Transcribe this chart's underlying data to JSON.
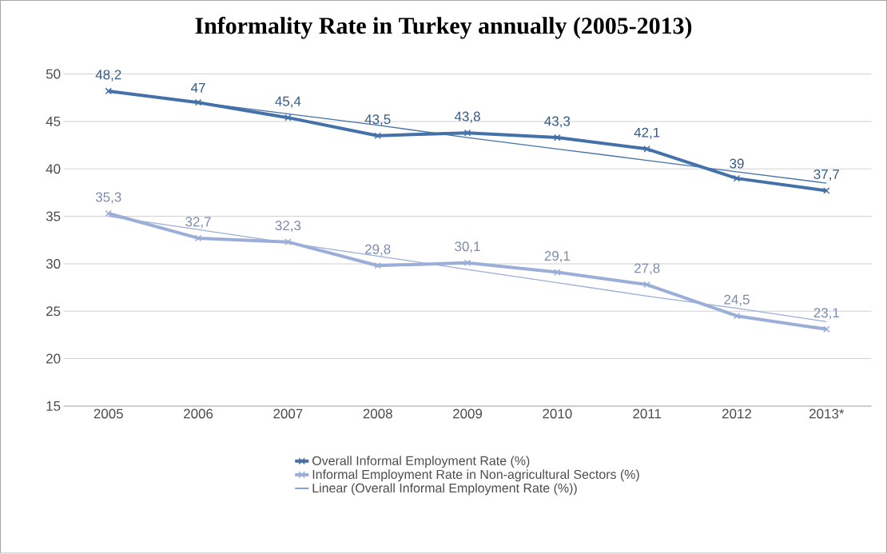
{
  "chart_data": {
    "type": "line",
    "title": "Informality Rate in Turkey annually (2005-2013)",
    "categories": [
      "2005",
      "2006",
      "2007",
      "2008",
      "2009",
      "2010",
      "2011",
      "2012",
      "2013*"
    ],
    "series": [
      {
        "name": "Overall Informal Employment Rate (%)",
        "color": "#4472a8",
        "marker": "cross",
        "values": [
          48.2,
          47,
          45.4,
          43.5,
          43.8,
          43.3,
          42.1,
          39,
          37.7
        ],
        "value_labels": [
          "48,2",
          "47",
          "45,4",
          "43,5",
          "43,8",
          "43,3",
          "42,1",
          "39",
          "37,7"
        ]
      },
      {
        "name": "Informal Employment Rate in Non-agricultural Sectors (%)",
        "color": "#9aaed8",
        "marker": "cross",
        "values": [
          35.3,
          32.7,
          32.3,
          29.8,
          30.1,
          29.1,
          27.8,
          24.5,
          23.1
        ],
        "value_labels": [
          "35,3",
          "32,7",
          "32,3",
          "29,8",
          "30,1",
          "29,1",
          "27,8",
          "24,5",
          "23,1"
        ]
      },
      {
        "name": "Linear (Overall Informal Employment Rate (%))",
        "color": "#4472a8",
        "marker": "none",
        "values": [
          48.2,
          47.0,
          45.8,
          44.6,
          43.3,
          42.1,
          40.9,
          39.7,
          38.5
        ]
      },
      {
        "color": "#9aaed8",
        "marker": "none",
        "values": [
          35.0,
          33.6,
          32.2,
          30.8,
          29.4,
          28.0,
          26.6,
          25.3,
          23.9
        ]
      }
    ],
    "ylim": [
      15,
      50
    ],
    "yticks": [
      15,
      20,
      25,
      30,
      35,
      40,
      45,
      50
    ],
    "grid": "y",
    "legend": "bottom"
  }
}
